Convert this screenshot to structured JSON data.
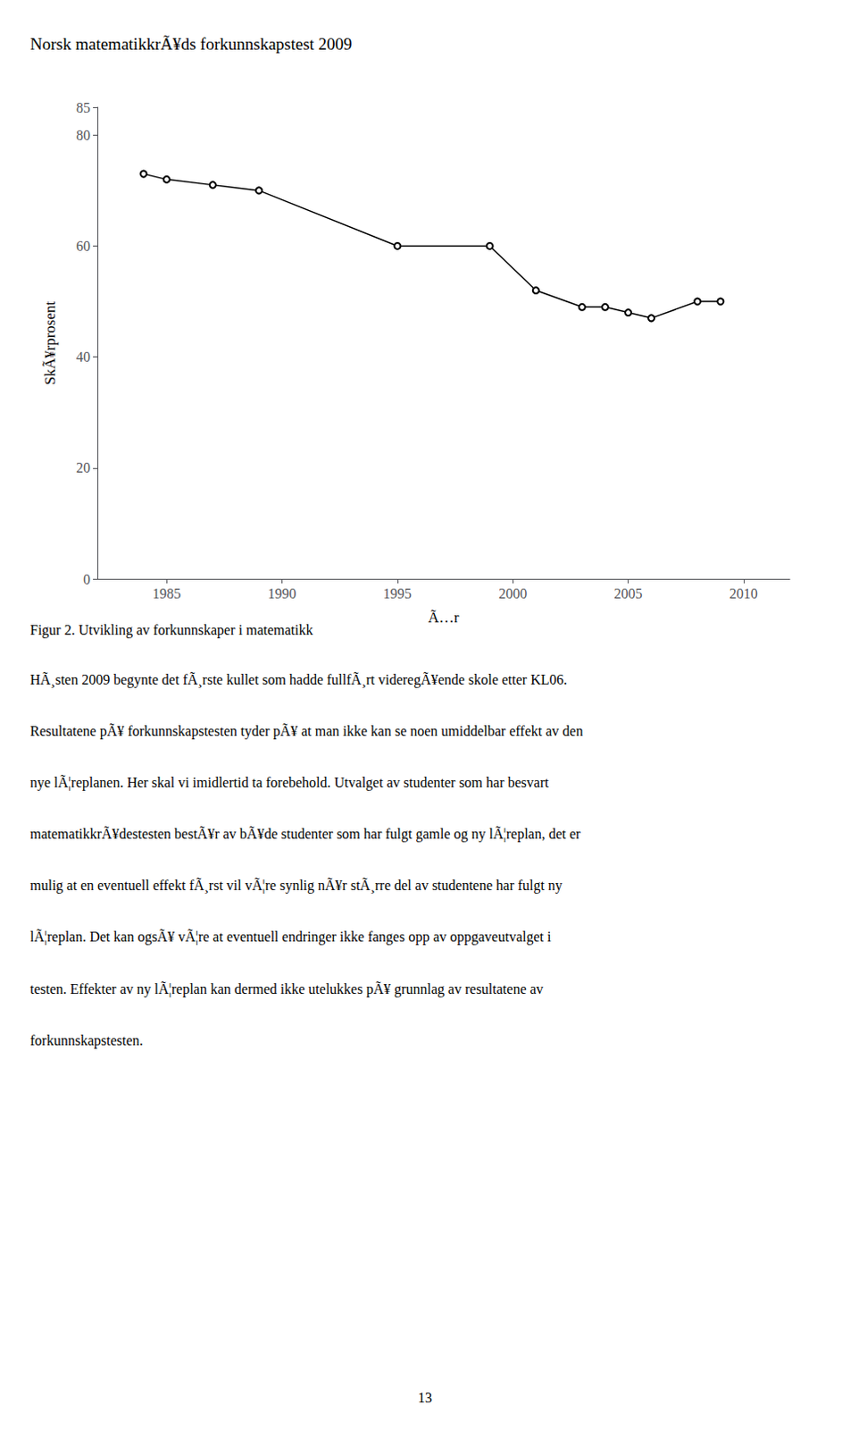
{
  "chart_data": {
    "type": "line",
    "title": "Norsk matematikkrÃ¥ds forkunnskapstest 2009",
    "x_label": "Ã…r",
    "y_label": "SkÃ¥rprosent",
    "x": [
      1984,
      1985,
      1987,
      1989,
      1995,
      1999,
      2001,
      2003,
      2004,
      2005,
      2006,
      2008,
      2009
    ],
    "values": [
      73,
      72,
      71,
      70,
      60,
      60,
      52,
      49,
      49,
      48,
      47,
      50,
      50
    ],
    "xlim": [
      1982,
      2012
    ],
    "ylim": [
      0,
      85
    ],
    "xticks": [
      1985,
      1990,
      1995,
      2000,
      2005,
      2010
    ],
    "yticks": [
      0,
      20,
      40,
      60,
      80
    ],
    "color": "#000000",
    "marker": "circle",
    "grid": false,
    "annotations": [
      "Figur 2. Utvikling av forkunnskaper i matematikk",
      "HÃ¸sten 2009 begynte det fÃ¸rste kullet som hadde fullfÃ¸rt videregÃ¥ende skole etter KL06.",
      "Resultatene pÃ¥ forkunnskapstesten tyder pÃ¥ at man ikke kan se noen umiddelbar effekt av den",
      "nye lÃ¦replanen. Her skal vi imidlertid ta forebehold. Utvalget av studenter som har besvart",
      "matematikkrÃ¥destesten bestÃ¥r av bÃ¥de studenter som har fulgt gamle og ny lÃ¦replan, det er",
      "mulig at en eventuell effekt fÃ¸rst vil vÃ¦re synlig nÃ¥r stÃ¸rre del av studentene har fulgt ny",
      "lÃ¦replan. Det kan ogsÃ¥ vÃ¦re at eventuell endringer ikke fanges opp av oppgaveutvalget i",
      "testen. Effekter av ny lÃ¦replan kan dermed ikke utelukkes pÃ¥ grunnlag av resultatene av",
      "forkunnskapstesten.",
      "13"
    ]
  }
}
